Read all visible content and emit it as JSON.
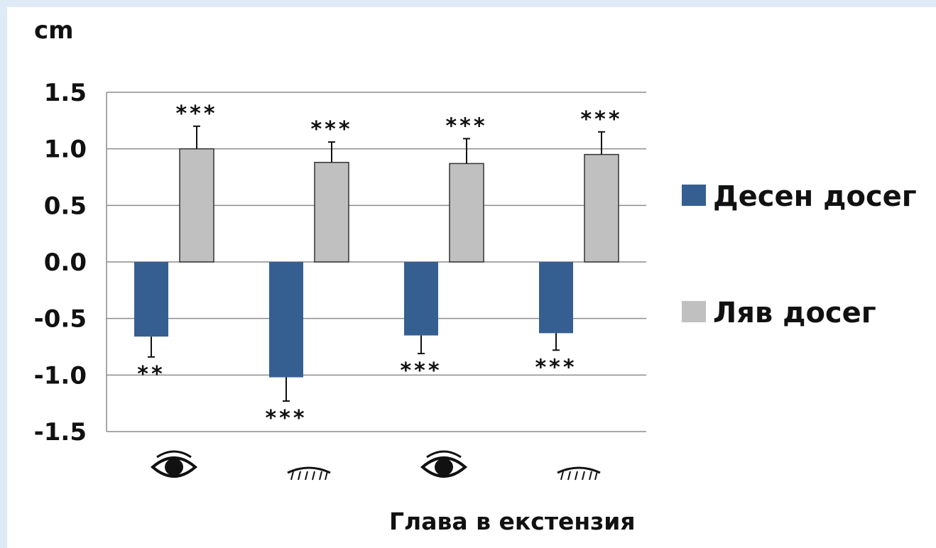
{
  "chart_data": {
    "type": "bar",
    "unit_label": "cm",
    "xlabel": "Глава в екстензия",
    "categories": [
      "eyes-open",
      "eyes-closed",
      "eyes-open",
      "eyes-closed"
    ],
    "category_icons": [
      "open-eye-icon",
      "closed-eye-icon",
      "open-eye-icon",
      "closed-eye-icon"
    ],
    "ylim": [
      -1.5,
      1.5
    ],
    "y_ticks": [
      "1.5",
      "1.0",
      "0.5",
      "0.0",
      "-0.5",
      "-1.0",
      "-1.5"
    ],
    "grid": true,
    "legend_position": "right",
    "series": [
      {
        "name": "Десен досег",
        "color": "#365f91",
        "values": [
          -0.66,
          -1.02,
          -0.65,
          -0.63
        ],
        "errors": [
          0.18,
          0.21,
          0.16,
          0.15
        ],
        "significance": [
          "**",
          "***",
          "***",
          "***"
        ]
      },
      {
        "name": "Ляв досег",
        "color": "#c0c0c0",
        "values": [
          1.0,
          0.88,
          0.87,
          0.95
        ],
        "errors": [
          0.2,
          0.18,
          0.22,
          0.2
        ],
        "significance": [
          "***",
          "***",
          "***",
          "***"
        ]
      }
    ]
  }
}
